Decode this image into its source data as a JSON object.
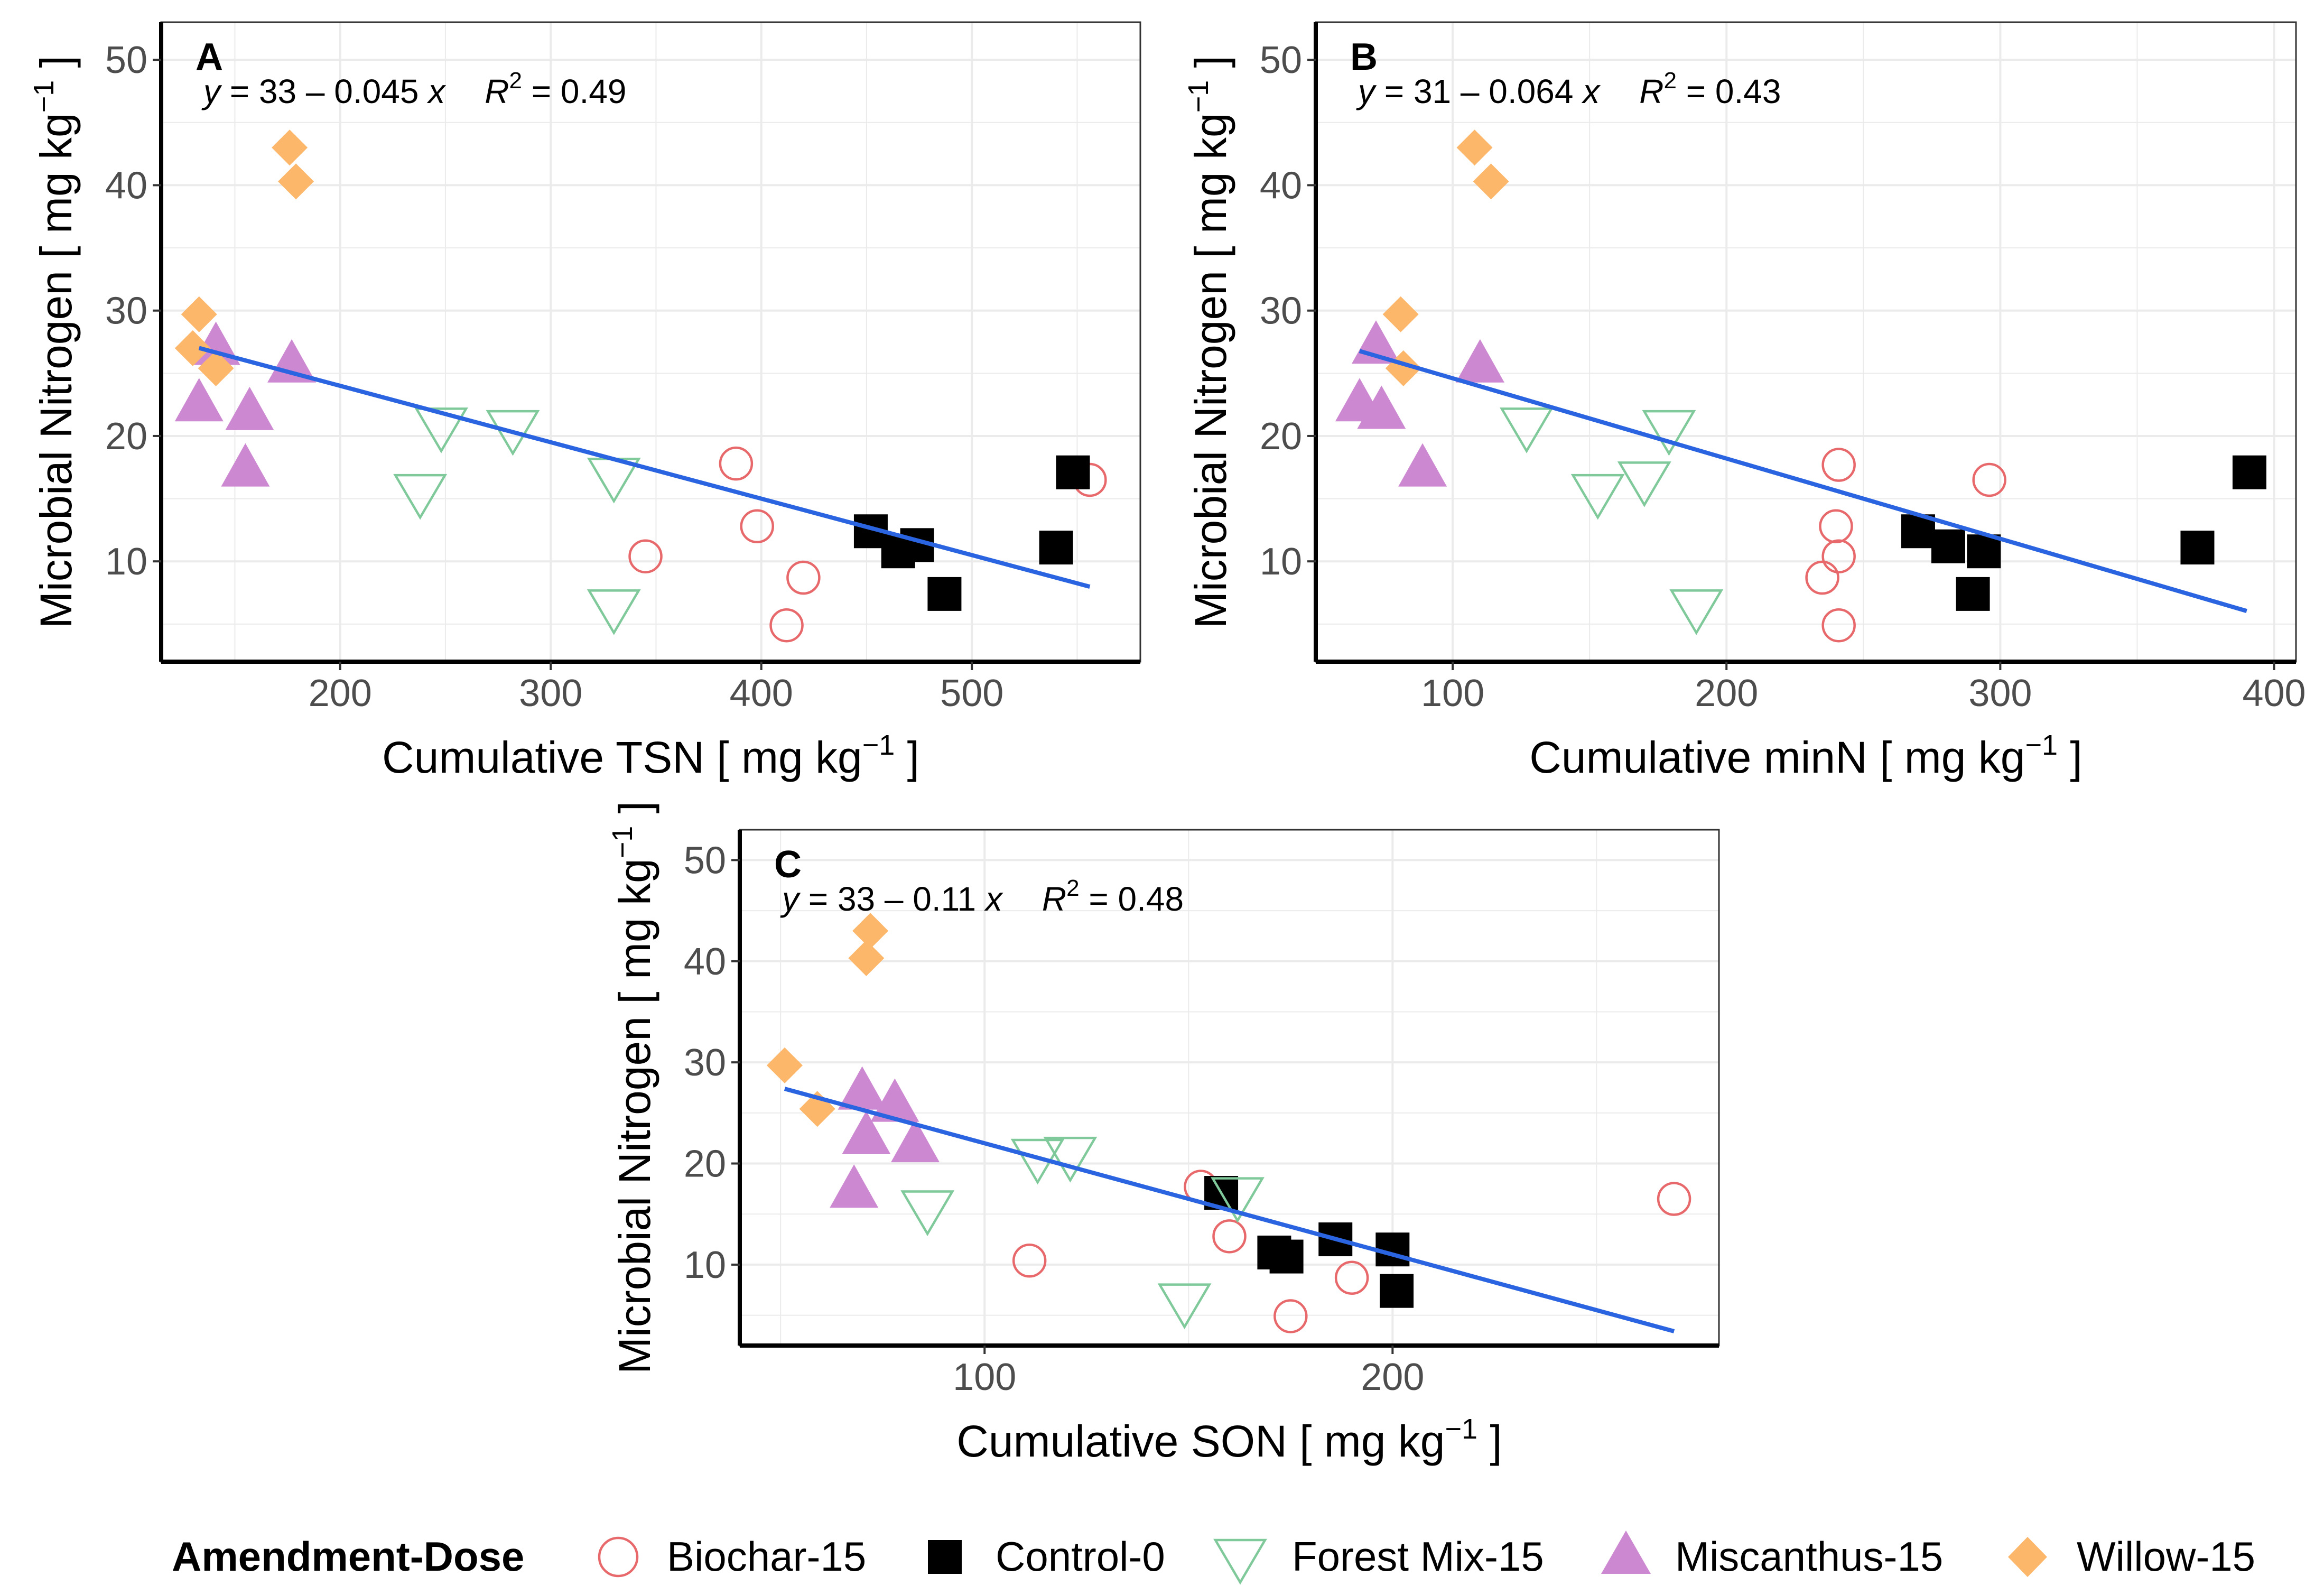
{
  "legend": {
    "title": "Amendment-Dose",
    "entries": [
      {
        "key": "Biochar-15",
        "label": "Biochar-15",
        "shape": "open-circle",
        "color": "#e8696b"
      },
      {
        "key": "Control-0",
        "label": "Control-0",
        "shape": "filled-square",
        "color": "#000000"
      },
      {
        "key": "ForestMix-15",
        "label": "Forest Mix-15",
        "shape": "open-triangle-down",
        "color": "#7fc99a"
      },
      {
        "key": "Miscanthus-15",
        "label": "Miscanthus-15",
        "shape": "filled-triangle-up",
        "color": "#cc88d0"
      },
      {
        "key": "Willow-15",
        "label": "Willow-15",
        "shape": "filled-diamond",
        "color": "#fdb76b"
      }
    ]
  },
  "colors": {
    "fit_line": "#2b64e0",
    "grid": "#ebebeb",
    "axis": "#000000"
  },
  "chart_data": [
    {
      "type": "scatter",
      "tag": "A",
      "equation": {
        "y": "y",
        "rhs": " = 33 – 0.045 ",
        "x": "x",
        "r": "R",
        "r2": " = 0.49"
      },
      "xlabel": "Cumulative TSN [ mg kg",
      "ylabel": "Microbial Nitrogen [ mg kg",
      "unit_exp": "−1",
      "xlim": [
        115,
        580
      ],
      "ylim": [
        2,
        53
      ],
      "xticks": [
        200,
        300,
        400,
        500
      ],
      "xtick_labels": [
        "200",
        "300",
        "400",
        "500"
      ],
      "yticks": [
        10,
        20,
        30,
        40,
        50
      ],
      "ytick_labels": [
        "10",
        "20",
        "30",
        "40",
        "50"
      ],
      "fit": {
        "intercept": 33,
        "slope": -0.045,
        "x_range": [
          133,
          556
        ]
      },
      "series": [
        {
          "name": "Biochar-15",
          "x": [
            388,
            398,
            345,
            420,
            412,
            556
          ],
          "y": [
            17.8,
            12.8,
            10.4,
            8.7,
            4.9,
            16.5
          ]
        },
        {
          "name": "Control-0",
          "x": [
            452,
            465,
            474,
            487,
            540,
            548
          ],
          "y": [
            12.4,
            10.8,
            11.3,
            7.4,
            11.1,
            17.1
          ]
        },
        {
          "name": "Forest Mix-15",
          "x": [
            238,
            248,
            282,
            330,
            330
          ],
          "y": [
            15.4,
            20.7,
            20.5,
            16.7,
            6.2
          ]
        },
        {
          "name": "Miscanthus-15",
          "x": [
            133,
            141,
            157,
            177,
            155
          ],
          "y": [
            22.6,
            27.1,
            21.9,
            25.7,
            17.4
          ]
        },
        {
          "name": "Willow-15",
          "x": [
            176,
            179,
            133,
            130,
            141
          ],
          "y": [
            43.0,
            40.3,
            29.7,
            27.0,
            25.4
          ]
        }
      ]
    },
    {
      "type": "scatter",
      "tag": "B",
      "equation": {
        "y": "y",
        "rhs": " = 31 – 0.064 ",
        "x": "x",
        "r": "R",
        "r2": " = 0.43"
      },
      "xlabel": "Cumulative minN [ mg kg",
      "ylabel": "Microbial Nitrogen [ mg kg",
      "unit_exp": "−1",
      "xlim": [
        50,
        408
      ],
      "ylim": [
        2,
        53
      ],
      "xticks": [
        100,
        200,
        300,
        400
      ],
      "xtick_labels": [
        "100",
        "200",
        "300",
        "400"
      ],
      "yticks": [
        10,
        20,
        30,
        40,
        50
      ],
      "ytick_labels": [
        "10",
        "20",
        "30",
        "40",
        "50"
      ],
      "fit": {
        "intercept": 31,
        "slope": -0.064,
        "x_range": [
          66,
          390
        ]
      },
      "series": [
        {
          "name": "Biochar-15",
          "x": [
            241,
            240,
            241,
            235,
            241,
            296
          ],
          "y": [
            17.7,
            12.8,
            10.4,
            8.7,
            4.9,
            16.5
          ]
        },
        {
          "name": "Control-0",
          "x": [
            270,
            281,
            290,
            294,
            372,
            391
          ],
          "y": [
            12.4,
            11.2,
            7.4,
            10.8,
            11.1,
            17.1
          ]
        },
        {
          "name": "Forest Mix-15",
          "x": [
            127,
            153,
            170,
            179,
            189
          ],
          "y": [
            20.7,
            15.4,
            16.4,
            20.5,
            6.2
          ]
        },
        {
          "name": "Miscanthus-15",
          "x": [
            66,
            72,
            74,
            89,
            110
          ],
          "y": [
            22.6,
            27.2,
            22.0,
            17.4,
            25.7
          ]
        },
        {
          "name": "Willow-15",
          "x": [
            108,
            114,
            81,
            82
          ],
          "y": [
            43.0,
            40.3,
            29.7,
            25.4
          ]
        }
      ]
    },
    {
      "type": "scatter",
      "tag": "C",
      "equation": {
        "y": "y",
        "rhs": " = 33 – 0.11 ",
        "x": "x",
        "r": "R",
        "r2": " = 0.48"
      },
      "xlabel": "Cumulative SON [ mg kg",
      "ylabel": "Microbial Nitrogen [ mg kg",
      "unit_exp": "−1",
      "xlim": [
        40,
        280
      ],
      "ylim": [
        2,
        53
      ],
      "xticks": [
        100,
        200
      ],
      "xtick_labels": [
        "100",
        "200"
      ],
      "yticks": [
        10,
        20,
        30,
        40,
        50
      ],
      "ytick_labels": [
        "10",
        "20",
        "30",
        "40",
        "50"
      ],
      "fit": {
        "intercept": 33,
        "slope": -0.11,
        "x_range": [
          51,
          269
        ]
      },
      "series": [
        {
          "name": "Biochar-15",
          "x": [
            111,
            153,
            160,
            175,
            190,
            269
          ],
          "y": [
            10.4,
            17.7,
            12.8,
            4.9,
            8.7,
            16.5
          ]
        },
        {
          "name": "Control-0",
          "x": [
            158,
            171,
            174,
            186,
            200,
            201
          ],
          "y": [
            17.1,
            11.2,
            10.8,
            12.5,
            11.5,
            7.4
          ]
        },
        {
          "name": "Forest Mix-15",
          "x": [
            86,
            113,
            121,
            149,
            162
          ],
          "y": [
            15.4,
            20.5,
            20.7,
            6.2,
            16.7
          ]
        },
        {
          "name": "Miscanthus-15",
          "x": [
            68,
            70,
            71,
            83,
            78
          ],
          "y": [
            17.4,
            27.1,
            22.7,
            21.9,
            25.9
          ]
        },
        {
          "name": "Willow-15",
          "x": [
            51,
            59,
            72,
            71
          ],
          "y": [
            29.7,
            25.4,
            43.0,
            40.3
          ]
        }
      ]
    }
  ]
}
